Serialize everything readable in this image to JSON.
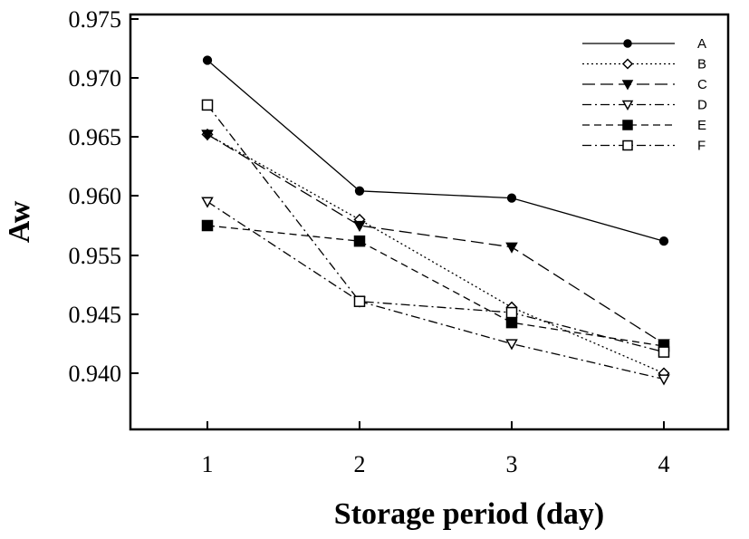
{
  "chart_data": {
    "type": "line",
    "title": "",
    "xlabel": "Storage period (day)",
    "ylabel": "Aw",
    "x": [
      1,
      2,
      3,
      4
    ],
    "x_ticks": [
      "1",
      "2",
      "3",
      "4"
    ],
    "y_ticks": [
      "0.940",
      "0.945",
      "0.955",
      "0.960",
      "0.965",
      "0.970",
      "0.975"
    ],
    "grid": false,
    "legend_position": "top-right",
    "series": [
      {
        "name": "A",
        "marker": "filled-circle",
        "dash": "solid",
        "values": [
          0.9715,
          0.9604,
          0.9598,
          0.9562
        ]
      },
      {
        "name": "B",
        "marker": "open-diamond",
        "dash": "dotted",
        "values": [
          0.9652,
          0.958,
          0.9462,
          0.94
        ]
      },
      {
        "name": "C",
        "marker": "filled-triangle",
        "dash": "long-dash",
        "values": [
          0.9652,
          0.9575,
          0.9557,
          0.9425
        ]
      },
      {
        "name": "D",
        "marker": "open-triangle",
        "dash": "dash-dot",
        "values": [
          0.9595,
          0.9472,
          0.9425,
          0.9395
        ]
      },
      {
        "name": "E",
        "marker": "filled-square",
        "dash": "dash",
        "values": [
          0.9575,
          0.9562,
          0.9443,
          0.9423
        ]
      },
      {
        "name": "F",
        "marker": "open-square",
        "dash": "dash-dot",
        "values": [
          0.9677,
          0.9472,
          0.9453,
          0.9418
        ]
      }
    ]
  }
}
